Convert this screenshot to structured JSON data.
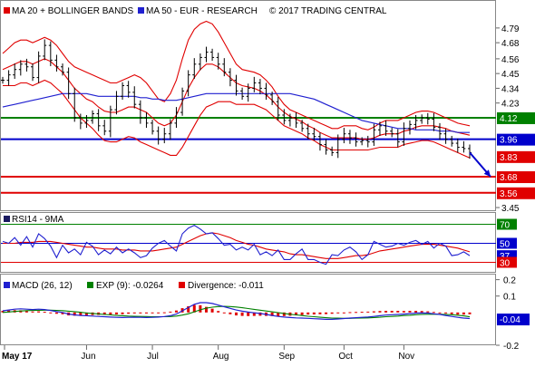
{
  "legend": {
    "ma20_bb": "MA 20 + BOLLINGER BANDS",
    "ma50": "MA 50 - EUR - RESEARCH",
    "copyright": "© 2017 TRADING CENTRAL",
    "rsi": "RSI14 - 9MA",
    "macd": "MACD (26, 12)",
    "exp": "EXP (9): -0.0264",
    "divergence": "Divergence: -0.011"
  },
  "colors": {
    "price": "#000000",
    "bollinger": "#e00000",
    "ma50": "#2020d0",
    "level_green": "#008000",
    "level_blue": "#0000cc",
    "level_red": "#e00000",
    "rsi_line": "#2020d0",
    "rsi_ma": "#e00000",
    "macd_line": "#2020d0",
    "exp_line": "#008000",
    "divergence": "#e00000",
    "arrow": "#0000cc"
  },
  "chart_data": [
    {
      "type": "line",
      "panel": "price",
      "xlabel": "",
      "ylabel": "",
      "x_ticks": [
        "May 17",
        "Jun",
        "Jul",
        "Aug",
        "Sep",
        "Oct",
        "Nov"
      ],
      "y_ticks": [
        "4.79",
        "4.68",
        "4.56",
        "4.45",
        "4.34",
        "4.23",
        "3.45"
      ],
      "ylim": [
        3.43,
        4.85
      ],
      "grid": false,
      "series": [
        {
          "name": "",
          "style": "ohlc-bars",
          "values": [
            4.4,
            4.44,
            4.48,
            4.52,
            4.5,
            4.42,
            4.58,
            4.66,
            4.55,
            4.5,
            4.46,
            4.3,
            4.12,
            4.08,
            4.1,
            4.15,
            4.06,
            4.02,
            4.18,
            4.28,
            4.36,
            4.31,
            4.22,
            4.12,
            4.08,
            4.02,
            3.96,
            4.0,
            4.08,
            4.16,
            4.32,
            4.44,
            4.52,
            4.57,
            4.61,
            4.57,
            4.52,
            4.46,
            4.4,
            4.32,
            4.28,
            4.34,
            4.38,
            4.34,
            4.29,
            4.24,
            4.14,
            4.1,
            4.12,
            4.08,
            4.04,
            4.0,
            3.98,
            3.92,
            3.88,
            3.86,
            3.96,
            4.0,
            3.97,
            3.94,
            3.95,
            3.94,
            4.03,
            4.06,
            4.02,
            4.0,
            3.94,
            4.04,
            4.07,
            4.1,
            4.12,
            4.11,
            4.05,
            4.0,
            3.96,
            3.93,
            3.9,
            3.89,
            3.86
          ]
        },
        {
          "name": "",
          "style": "bollinger-upper",
          "values": [
            4.6,
            4.64,
            4.68,
            4.7,
            4.7,
            4.68,
            4.7,
            4.72,
            4.7,
            4.66,
            4.6,
            4.54,
            4.5,
            4.48,
            4.46,
            4.44,
            4.42,
            4.4,
            4.38,
            4.38,
            4.4,
            4.42,
            4.44,
            4.42,
            4.38,
            4.32,
            4.26,
            4.24,
            4.3,
            4.4,
            4.56,
            4.7,
            4.78,
            4.82,
            4.84,
            4.82,
            4.76,
            4.68,
            4.6,
            4.52,
            4.48,
            4.47,
            4.46,
            4.44,
            4.4,
            4.35,
            4.28,
            4.22,
            4.18,
            4.16,
            4.14,
            4.12,
            4.1,
            4.08,
            4.06,
            4.04,
            4.04,
            4.06,
            4.06,
            4.06,
            4.04,
            4.03,
            4.05,
            4.08,
            4.1,
            4.1,
            4.1,
            4.12,
            4.14,
            4.16,
            4.17,
            4.17,
            4.16,
            4.14,
            4.12,
            4.1,
            4.08,
            4.07,
            4.06
          ]
        },
        {
          "name": "",
          "style": "bollinger-middle",
          "values": [
            4.48,
            4.5,
            4.52,
            4.54,
            4.54,
            4.52,
            4.54,
            4.56,
            4.54,
            4.5,
            4.46,
            4.4,
            4.34,
            4.3,
            4.26,
            4.24,
            4.2,
            4.17,
            4.16,
            4.16,
            4.18,
            4.2,
            4.2,
            4.18,
            4.16,
            4.12,
            4.08,
            4.06,
            4.08,
            4.14,
            4.24,
            4.34,
            4.42,
            4.48,
            4.52,
            4.52,
            4.5,
            4.46,
            4.42,
            4.38,
            4.36,
            4.35,
            4.34,
            4.32,
            4.29,
            4.25,
            4.2,
            4.16,
            4.13,
            4.11,
            4.09,
            4.06,
            4.04,
            4.01,
            3.99,
            3.97,
            3.97,
            3.97,
            3.97,
            3.97,
            3.96,
            3.96,
            3.97,
            3.99,
            4.0,
            4.0,
            4.0,
            4.02,
            4.03,
            4.05,
            4.06,
            4.06,
            4.06,
            4.05,
            4.04,
            4.02,
            4.01,
            4.0,
            3.99
          ]
        },
        {
          "name": "",
          "style": "bollinger-lower",
          "values": [
            4.36,
            4.36,
            4.36,
            4.38,
            4.38,
            4.36,
            4.38,
            4.4,
            4.38,
            4.34,
            4.3,
            4.24,
            4.18,
            4.12,
            4.08,
            4.04,
            3.99,
            3.95,
            3.94,
            3.94,
            3.96,
            3.98,
            3.97,
            3.94,
            3.92,
            3.9,
            3.88,
            3.86,
            3.84,
            3.84,
            3.9,
            3.98,
            4.06,
            4.14,
            4.2,
            4.22,
            4.24,
            4.24,
            4.24,
            4.22,
            4.22,
            4.22,
            4.22,
            4.2,
            4.18,
            4.14,
            4.1,
            4.06,
            4.04,
            4.02,
            4.0,
            3.97,
            3.95,
            3.92,
            3.9,
            3.88,
            3.88,
            3.88,
            3.88,
            3.88,
            3.88,
            3.88,
            3.89,
            3.9,
            3.9,
            3.9,
            3.9,
            3.92,
            3.93,
            3.94,
            3.95,
            3.95,
            3.94,
            3.92,
            3.9,
            3.88,
            3.86,
            3.84,
            3.82
          ]
        },
        {
          "name": "",
          "style": "ma50",
          "values": [
            4.2,
            4.21,
            4.22,
            4.23,
            4.24,
            4.25,
            4.26,
            4.27,
            4.28,
            4.29,
            4.3,
            4.3,
            4.3,
            4.3,
            4.3,
            4.29,
            4.28,
            4.28,
            4.28,
            4.28,
            4.28,
            4.28,
            4.28,
            4.27,
            4.27,
            4.26,
            4.26,
            4.25,
            4.25,
            4.25,
            4.26,
            4.27,
            4.28,
            4.29,
            4.3,
            4.3,
            4.3,
            4.3,
            4.3,
            4.3,
            4.3,
            4.3,
            4.3,
            4.3,
            4.3,
            4.3,
            4.3,
            4.3,
            4.3,
            4.29,
            4.28,
            4.27,
            4.26,
            4.24,
            4.22,
            4.2,
            4.18,
            4.16,
            4.14,
            4.12,
            4.1,
            4.09,
            4.08,
            4.07,
            4.06,
            4.05,
            4.04,
            4.04,
            4.04,
            4.03,
            4.03,
            4.03,
            4.03,
            4.02,
            4.02,
            4.02,
            4.01,
            4.01,
            4.01
          ]
        }
      ],
      "levels": [
        {
          "value": 4.12,
          "label": "4.12",
          "role": "resistance"
        },
        {
          "value": 3.96,
          "label": "3.96",
          "role": "pivot"
        },
        {
          "value": 3.83,
          "label": "3.83",
          "role": "last"
        },
        {
          "value": 3.68,
          "label": "3.68",
          "role": "support"
        },
        {
          "value": 3.56,
          "label": "3.56",
          "role": "support"
        }
      ],
      "annotations": [
        {
          "type": "arrow",
          "from": {
            "x": "Nov",
            "y": 3.86
          },
          "to": {
            "x": "Nov",
            "y": 3.68
          },
          "meaning": "bearish target"
        }
      ]
    },
    {
      "type": "line",
      "panel": "rsi",
      "title": "",
      "y_ticks": [],
      "ylim": [
        20,
        80
      ],
      "series": [
        {
          "name": "",
          "values": [
            52,
            50,
            56,
            48,
            57,
            46,
            60,
            55,
            47,
            35,
            48,
            40,
            44,
            38,
            51,
            47,
            38,
            43,
            39,
            46,
            40,
            44,
            40,
            35,
            37,
            45,
            50,
            53,
            47,
            42,
            60,
            66,
            69,
            65,
            60,
            61,
            55,
            48,
            49,
            43,
            46,
            43,
            49,
            38,
            41,
            37,
            43,
            33,
            33,
            39,
            44,
            33,
            33,
            30,
            28,
            38,
            37,
            43,
            46,
            41,
            33,
            38,
            52,
            49,
            46,
            47,
            50,
            48,
            51,
            53,
            49,
            52,
            45,
            50,
            47,
            37,
            38,
            41,
            37
          ]
        },
        {
          "name": "",
          "values": [
            50,
            50,
            50,
            51,
            51,
            51,
            52,
            52,
            52,
            51,
            50,
            49,
            48,
            47,
            46,
            46,
            45,
            44,
            44,
            44,
            43,
            43,
            43,
            42,
            42,
            42,
            43,
            44,
            45,
            46,
            49,
            52,
            55,
            58,
            60,
            61,
            60,
            58,
            56,
            53,
            51,
            49,
            48,
            46,
            44,
            43,
            42,
            41,
            39,
            38,
            38,
            37,
            36,
            35,
            34,
            34,
            34,
            35,
            36,
            37,
            37,
            38,
            40,
            42,
            43,
            44,
            45,
            46,
            47,
            48,
            49,
            49,
            49,
            48,
            47,
            46,
            45,
            43,
            41
          ]
        }
      ],
      "levels": [
        {
          "value": 70,
          "label": "70"
        },
        {
          "value": 50,
          "label": "50"
        },
        {
          "value": 37,
          "label": "37"
        },
        {
          "value": 30,
          "label": "30"
        }
      ]
    },
    {
      "type": "bar",
      "panel": "macd",
      "y_ticks": [
        "0.2",
        "0.1",
        "-0.2"
      ],
      "ylim": [
        -0.2,
        0.22
      ],
      "series": [
        {
          "name": "",
          "values": [
            0.01,
            0.015,
            0.02,
            0.022,
            0.02,
            0.018,
            0.02,
            0.018,
            0.012,
            0.005,
            0.0,
            -0.01,
            -0.015,
            -0.018,
            -0.02,
            -0.022,
            -0.024,
            -0.026,
            -0.028,
            -0.03,
            -0.031,
            -0.03,
            -0.029,
            -0.03,
            -0.031,
            -0.03,
            -0.028,
            -0.025,
            -0.02,
            -0.01,
            0.01,
            0.03,
            0.05,
            0.06,
            0.06,
            0.055,
            0.045,
            0.035,
            0.025,
            0.015,
            0.008,
            0.002,
            -0.002,
            -0.006,
            -0.012,
            -0.018,
            -0.024,
            -0.028,
            -0.031,
            -0.033,
            -0.034,
            -0.036,
            -0.038,
            -0.04,
            -0.042,
            -0.042,
            -0.04,
            -0.037,
            -0.034,
            -0.032,
            -0.03,
            -0.028,
            -0.024,
            -0.02,
            -0.016,
            -0.014,
            -0.012,
            -0.01,
            -0.007,
            -0.004,
            -0.003,
            -0.004,
            -0.008,
            -0.012,
            -0.018,
            -0.024,
            -0.03,
            -0.034,
            -0.037
          ]
        },
        {
          "name": "",
          "values": [
            0.0,
            0.003,
            0.006,
            0.009,
            0.011,
            0.012,
            0.013,
            0.014,
            0.014,
            0.013,
            0.011,
            0.008,
            0.005,
            0.001,
            -0.003,
            -0.006,
            -0.009,
            -0.012,
            -0.015,
            -0.018,
            -0.02,
            -0.022,
            -0.023,
            -0.024,
            -0.025,
            -0.026,
            -0.026,
            -0.026,
            -0.025,
            -0.022,
            -0.016,
            -0.008,
            0.004,
            0.016,
            0.026,
            0.032,
            0.036,
            0.037,
            0.036,
            0.033,
            0.029,
            0.024,
            0.019,
            0.014,
            0.009,
            0.004,
            -0.001,
            -0.006,
            -0.011,
            -0.015,
            -0.019,
            -0.023,
            -0.026,
            -0.029,
            -0.032,
            -0.034,
            -0.035,
            -0.036,
            -0.036,
            -0.035,
            -0.034,
            -0.033,
            -0.031,
            -0.029,
            -0.026,
            -0.024,
            -0.022,
            -0.019,
            -0.017,
            -0.014,
            -0.012,
            -0.011,
            -0.011,
            -0.011,
            -0.012,
            -0.014,
            -0.017,
            -0.021,
            -0.0264
          ]
        },
        {
          "name": "",
          "values": [
            0.01,
            0.012,
            0.014,
            0.013,
            0.009,
            0.006,
            0.007,
            0.004,
            -0.002,
            -0.008,
            -0.011,
            -0.018,
            -0.02,
            -0.019,
            -0.017,
            -0.016,
            -0.015,
            -0.014,
            -0.013,
            -0.012,
            -0.011,
            -0.008,
            -0.006,
            -0.006,
            -0.006,
            -0.004,
            -0.002,
            0.001,
            0.005,
            0.012,
            0.026,
            0.038,
            0.046,
            0.044,
            0.034,
            0.023,
            0.009,
            -0.002,
            -0.011,
            -0.018,
            -0.021,
            -0.022,
            -0.021,
            -0.02,
            -0.021,
            -0.022,
            -0.023,
            -0.022,
            -0.02,
            -0.018,
            -0.015,
            -0.013,
            -0.012,
            -0.011,
            -0.01,
            -0.008,
            -0.005,
            -0.001,
            0.002,
            0.003,
            0.004,
            0.005,
            0.007,
            0.009,
            0.01,
            0.01,
            0.01,
            0.009,
            0.01,
            0.01,
            0.009,
            0.007,
            0.003,
            -0.001,
            -0.006,
            -0.01,
            -0.013,
            -0.013,
            -0.011
          ]
        }
      ],
      "levels": [
        {
          "value": -0.04,
          "label": "-0.04"
        }
      ]
    }
  ]
}
